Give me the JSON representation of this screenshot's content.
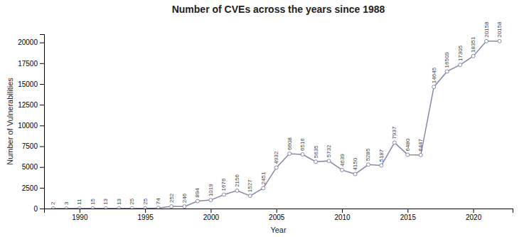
{
  "chart_data": {
    "type": "line",
    "title": "Number of CVEs across the years since 1988",
    "xlabel": "Year",
    "ylabel": "Number of Vulnerabilities",
    "x": [
      1988,
      1989,
      1990,
      1991,
      1992,
      1993,
      1994,
      1995,
      1996,
      1997,
      1998,
      1999,
      2000,
      2001,
      2002,
      2003,
      2004,
      2005,
      2006,
      2007,
      2008,
      2009,
      2010,
      2011,
      2012,
      2013,
      2014,
      2015,
      2016,
      2017,
      2018,
      2019,
      2020,
      2021,
      2022
    ],
    "values": [
      2,
      3,
      11,
      15,
      13,
      13,
      25,
      25,
      74,
      252,
      246,
      894,
      1019,
      1676,
      2156,
      1527,
      2451,
      4932,
      6608,
      6516,
      5635,
      5732,
      4639,
      4150,
      5285,
      5187,
      7937,
      6480,
      6447,
      14645,
      16509,
      17305,
      18351,
      20158,
      20158
    ],
    "color": "#8888aa",
    "marker": "circle",
    "data_labels": true,
    "grid": false,
    "xlim": [
      1987.3,
      2023.0
    ],
    "ylim": [
      0,
      21000
    ],
    "xticks": [
      1990,
      1995,
      2000,
      2005,
      2010,
      2015,
      2020
    ],
    "yticks": [
      0,
      2500,
      5000,
      7500,
      10000,
      12500,
      15000,
      17500,
      20000
    ]
  }
}
